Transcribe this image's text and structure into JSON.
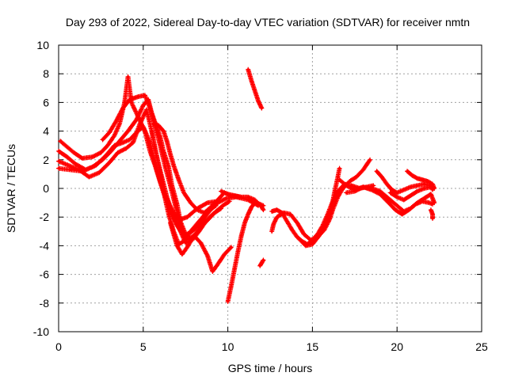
{
  "chart_data": {
    "type": "scatter",
    "title": "Day 293 of 2022, Sidereal Day-to-day VTEC variation (SDTVAR) for receiver nmtn",
    "xlabel": "GPS time / hours",
    "ylabel": "SDTVAR / TECUs",
    "xlim": [
      0,
      25
    ],
    "ylim": [
      -10,
      10
    ],
    "xticks": [
      "0",
      "5",
      "10",
      "15",
      "20",
      "25"
    ],
    "yticks": [
      "10",
      "8",
      "6",
      "4",
      "2",
      "0",
      "-2",
      "-4",
      "-6",
      "-8",
      "-10"
    ],
    "grid": true,
    "legend": "none",
    "marker_color": "#ff0000",
    "series": [
      {
        "points": [
          [
            0.0,
            2.6
          ],
          [
            0.5,
            2.2
          ],
          [
            1.0,
            1.7
          ],
          [
            1.6,
            1.3
          ],
          [
            2.2,
            1.6
          ],
          [
            2.8,
            2.3
          ],
          [
            3.3,
            3.0
          ],
          [
            3.8,
            3.2
          ],
          [
            4.2,
            3.4
          ],
          [
            4.6,
            3.9
          ],
          [
            5.0,
            4.3
          ],
          [
            5.4,
            3.2
          ],
          [
            5.8,
            1.2
          ],
          [
            6.2,
            -0.3
          ],
          [
            6.6,
            -1.5
          ],
          [
            7.0,
            -2.6
          ],
          [
            7.4,
            -3.3
          ],
          [
            7.9,
            -3.0
          ],
          [
            8.4,
            -2.4
          ],
          [
            8.9,
            -1.6
          ],
          [
            9.4,
            -1.0
          ],
          [
            9.9,
            -0.7
          ],
          [
            10.5,
            -0.6
          ],
          [
            11.2,
            -0.8
          ],
          [
            11.8,
            -1.2
          ]
        ]
      },
      {
        "points": [
          [
            0.0,
            1.9
          ],
          [
            0.6,
            1.6
          ],
          [
            1.2,
            1.3
          ],
          [
            1.8,
            0.8
          ],
          [
            2.4,
            1.1
          ],
          [
            3.0,
            1.8
          ],
          [
            3.5,
            2.5
          ],
          [
            4.0,
            2.8
          ],
          [
            4.4,
            3.2
          ],
          [
            4.8,
            4.5
          ],
          [
            5.2,
            5.5
          ],
          [
            5.5,
            4.0
          ],
          [
            5.8,
            2.2
          ],
          [
            6.1,
            0.8
          ],
          [
            6.4,
            -0.6
          ],
          [
            6.8,
            -2.0
          ],
          [
            7.2,
            -3.0
          ],
          [
            7.5,
            -3.8
          ],
          [
            7.9,
            -3.6
          ],
          [
            8.3,
            -3.0
          ],
          [
            8.7,
            -2.3
          ],
          [
            9.1,
            -1.8
          ],
          [
            9.6,
            -1.4
          ]
        ]
      },
      {
        "points": [
          [
            0.0,
            1.4
          ],
          [
            0.7,
            1.3
          ],
          [
            1.4,
            1.2
          ],
          [
            2.0,
            1.5
          ],
          [
            2.6,
            2.0
          ],
          [
            3.1,
            2.6
          ],
          [
            3.6,
            3.3
          ],
          [
            4.1,
            4.0
          ],
          [
            4.6,
            4.8
          ],
          [
            5.0,
            5.8
          ],
          [
            5.3,
            6.2
          ],
          [
            5.6,
            4.8
          ],
          [
            6.0,
            3.0
          ],
          [
            6.3,
            1.5
          ],
          [
            6.6,
            0.2
          ],
          [
            6.9,
            -1.2
          ],
          [
            7.2,
            -2.5
          ],
          [
            7.5,
            -3.5
          ],
          [
            7.8,
            -3.0
          ],
          [
            8.3,
            -2.3
          ],
          [
            8.8,
            -1.6
          ],
          [
            9.3,
            -1.2
          ]
        ]
      },
      {
        "points": [
          [
            0.1,
            3.3
          ],
          [
            0.5,
            2.9
          ],
          [
            0.9,
            2.5
          ],
          [
            1.4,
            2.1
          ],
          [
            2.0,
            2.2
          ],
          [
            2.5,
            2.5
          ],
          [
            2.9,
            3.0
          ],
          [
            3.3,
            3.7
          ],
          [
            3.6,
            4.5
          ],
          [
            3.9,
            6.0
          ],
          [
            4.1,
            7.8
          ],
          [
            4.3,
            6.0
          ],
          [
            4.7,
            5.0
          ],
          [
            5.1,
            4.0
          ],
          [
            5.4,
            2.6
          ],
          [
            5.7,
            1.6
          ],
          [
            6.0,
            0.5
          ],
          [
            6.3,
            -0.5
          ],
          [
            6.7,
            -1.5
          ],
          [
            7.1,
            -2.2
          ],
          [
            7.6,
            -2.0
          ],
          [
            8.2,
            -1.4
          ],
          [
            8.8,
            -1.0
          ],
          [
            9.4,
            -0.9
          ]
        ]
      },
      {
        "points": [
          [
            2.6,
            3.4
          ],
          [
            3.0,
            3.9
          ],
          [
            3.4,
            4.7
          ],
          [
            3.8,
            5.6
          ],
          [
            4.2,
            6.2
          ],
          [
            4.7,
            6.4
          ],
          [
            5.1,
            6.5
          ],
          [
            5.4,
            5.6
          ],
          [
            5.7,
            4.6
          ],
          [
            6.0,
            3.6
          ],
          [
            6.2,
            2.6
          ],
          [
            6.5,
            1.5
          ],
          [
            6.7,
            0.2
          ],
          [
            7.0,
            -1.1
          ],
          [
            7.2,
            -2.3
          ],
          [
            7.5,
            -3.2
          ]
        ]
      },
      {
        "points": [
          [
            5.6,
            4.5
          ],
          [
            5.9,
            4.4
          ],
          [
            6.2,
            4.0
          ],
          [
            6.4,
            3.3
          ],
          [
            6.6,
            2.4
          ],
          [
            6.8,
            1.6
          ],
          [
            7.1,
            0.6
          ],
          [
            7.4,
            -0.3
          ],
          [
            7.8,
            -1.0
          ],
          [
            8.2,
            -1.5
          ],
          [
            8.6,
            -1.7
          ],
          [
            9.0,
            -1.3
          ],
          [
            9.4,
            -0.8
          ],
          [
            9.8,
            -0.3
          ],
          [
            10.2,
            -0.5
          ],
          [
            10.7,
            -0.6
          ]
        ]
      },
      {
        "points": [
          [
            5.5,
            4.0
          ],
          [
            5.7,
            2.8
          ],
          [
            6.0,
            1.2
          ],
          [
            6.2,
            -0.2
          ],
          [
            6.5,
            -1.8
          ],
          [
            6.8,
            -3.0
          ],
          [
            7.1,
            -3.9
          ],
          [
            7.5,
            -3.6
          ],
          [
            8.0,
            -3.3
          ],
          [
            8.4,
            -3.8
          ],
          [
            8.8,
            -4.7
          ],
          [
            9.1,
            -5.8
          ],
          [
            9.4,
            -5.3
          ],
          [
            9.8,
            -4.6
          ],
          [
            10.2,
            -4.1
          ]
        ]
      },
      {
        "points": [
          [
            6.6,
            -2.4
          ],
          [
            6.8,
            -3.2
          ],
          [
            7.0,
            -4.0
          ],
          [
            7.3,
            -4.6
          ],
          [
            7.6,
            -4.1
          ],
          [
            8.0,
            -3.3
          ],
          [
            8.4,
            -2.7
          ],
          [
            8.9,
            -2.1
          ],
          [
            9.3,
            -1.6
          ],
          [
            9.7,
            -1.2
          ],
          [
            10.1,
            -0.9
          ]
        ]
      },
      {
        "points": [
          [
            10.0,
            -7.9
          ],
          [
            10.2,
            -6.8
          ],
          [
            10.4,
            -5.6
          ],
          [
            10.6,
            -4.4
          ],
          [
            10.8,
            -3.3
          ],
          [
            11.0,
            -2.4
          ],
          [
            11.2,
            -1.8
          ],
          [
            11.4,
            -1.3
          ],
          [
            11.6,
            -1.0
          ],
          [
            11.9,
            -1.1
          ],
          [
            12.1,
            -1.2
          ]
        ]
      },
      {
        "points": [
          [
            9.6,
            -0.2
          ],
          [
            10.0,
            -0.4
          ],
          [
            10.4,
            -0.5
          ],
          [
            10.8,
            -0.6
          ],
          [
            11.2,
            -0.6
          ],
          [
            11.6,
            -0.8
          ],
          [
            12.0,
            -1.3
          ],
          [
            12.1,
            -1.5
          ]
        ]
      },
      {
        "points": [
          [
            11.2,
            8.3
          ],
          [
            11.4,
            7.5
          ],
          [
            11.6,
            6.8
          ],
          [
            11.8,
            6.1
          ],
          [
            12.0,
            5.6
          ]
        ]
      },
      {
        "points": [
          [
            11.9,
            -5.4
          ],
          [
            12.0,
            -5.2
          ],
          [
            12.1,
            -5.0
          ]
        ]
      },
      {
        "points": [
          [
            12.6,
            -3.0
          ],
          [
            12.7,
            -2.5
          ],
          [
            12.9,
            -2.0
          ],
          [
            13.3,
            -1.7
          ],
          [
            13.7,
            -1.8
          ],
          [
            14.1,
            -2.4
          ],
          [
            14.5,
            -3.2
          ],
          [
            14.9,
            -3.6
          ],
          [
            15.3,
            -3.4
          ],
          [
            15.7,
            -2.9
          ],
          [
            16.0,
            -2.2
          ],
          [
            16.2,
            -1.5
          ],
          [
            16.5,
            -0.6
          ],
          [
            16.8,
            0.0
          ],
          [
            17.2,
            0.5
          ],
          [
            17.6,
            0.8
          ],
          [
            18.0,
            1.3
          ],
          [
            18.4,
            2.0
          ]
        ]
      },
      {
        "points": [
          [
            12.6,
            -1.6
          ],
          [
            12.9,
            -1.5
          ],
          [
            13.2,
            -1.7
          ],
          [
            13.5,
            -2.3
          ],
          [
            13.8,
            -2.9
          ],
          [
            14.1,
            -3.4
          ],
          [
            14.4,
            -3.7
          ],
          [
            14.7,
            -3.9
          ],
          [
            15.0,
            -3.6
          ],
          [
            15.3,
            -3.2
          ],
          [
            15.6,
            -2.6
          ],
          [
            15.9,
            -1.8
          ],
          [
            16.2,
            -0.9
          ],
          [
            16.5,
            -0.2
          ],
          [
            16.9,
            0.3
          ],
          [
            17.3,
            0.2
          ],
          [
            17.8,
            0.0
          ],
          [
            18.2,
            0.1
          ],
          [
            18.6,
            0.2
          ]
        ]
      },
      {
        "points": [
          [
            14.2,
            -3.5
          ],
          [
            14.6,
            -4.0
          ],
          [
            15.0,
            -3.9
          ],
          [
            15.4,
            -3.3
          ],
          [
            15.8,
            -2.5
          ],
          [
            16.1,
            -1.5
          ],
          [
            16.3,
            -0.3
          ],
          [
            16.5,
            0.8
          ],
          [
            16.6,
            1.4
          ]
        ]
      },
      {
        "points": [
          [
            16.6,
            0.6
          ],
          [
            17.0,
            0.2
          ],
          [
            17.5,
            -0.1
          ],
          [
            18.0,
            0.1
          ],
          [
            18.5,
            0.0
          ],
          [
            19.0,
            -0.2
          ],
          [
            19.5,
            -0.7
          ],
          [
            20.0,
            -1.2
          ],
          [
            20.4,
            -1.6
          ],
          [
            20.8,
            -1.4
          ],
          [
            21.2,
            -1.0
          ],
          [
            21.6,
            -0.7
          ],
          [
            22.0,
            -0.4
          ],
          [
            22.2,
            -1.0
          ]
        ]
      },
      {
        "points": [
          [
            17.0,
            -0.3
          ],
          [
            17.5,
            -0.2
          ],
          [
            18.0,
            0.1
          ],
          [
            18.5,
            -0.1
          ],
          [
            19.0,
            -0.4
          ],
          [
            19.5,
            -1.0
          ],
          [
            19.9,
            -1.5
          ],
          [
            20.3,
            -1.8
          ],
          [
            20.7,
            -1.5
          ],
          [
            21.1,
            -1.1
          ],
          [
            21.5,
            -0.9
          ],
          [
            21.9,
            -1.0
          ],
          [
            22.1,
            -1.1
          ]
        ]
      },
      {
        "points": [
          [
            18.8,
            1.2
          ],
          [
            19.1,
            0.8
          ],
          [
            19.4,
            0.3
          ],
          [
            19.7,
            -0.1
          ],
          [
            20.0,
            -0.3
          ],
          [
            20.4,
            -0.1
          ],
          [
            20.8,
            0.1
          ],
          [
            21.2,
            0.2
          ],
          [
            21.6,
            0.3
          ],
          [
            22.0,
            0.2
          ],
          [
            22.1,
            -0.1
          ]
        ]
      },
      {
        "points": [
          [
            19.6,
            -0.3
          ],
          [
            20.0,
            -0.6
          ],
          [
            20.4,
            -0.8
          ],
          [
            20.8,
            -0.5
          ],
          [
            21.2,
            -0.2
          ],
          [
            21.6,
            0.0
          ],
          [
            22.0,
            0.1
          ]
        ]
      },
      {
        "points": [
          [
            20.6,
            1.2
          ],
          [
            20.9,
            0.9
          ],
          [
            21.2,
            0.7
          ],
          [
            21.5,
            0.6
          ],
          [
            21.8,
            0.5
          ],
          [
            22.1,
            0.3
          ],
          [
            22.2,
            0.0
          ]
        ]
      },
      {
        "points": [
          [
            22.0,
            -1.5
          ],
          [
            22.1,
            -1.8
          ],
          [
            22.1,
            -2.1
          ]
        ]
      }
    ]
  }
}
